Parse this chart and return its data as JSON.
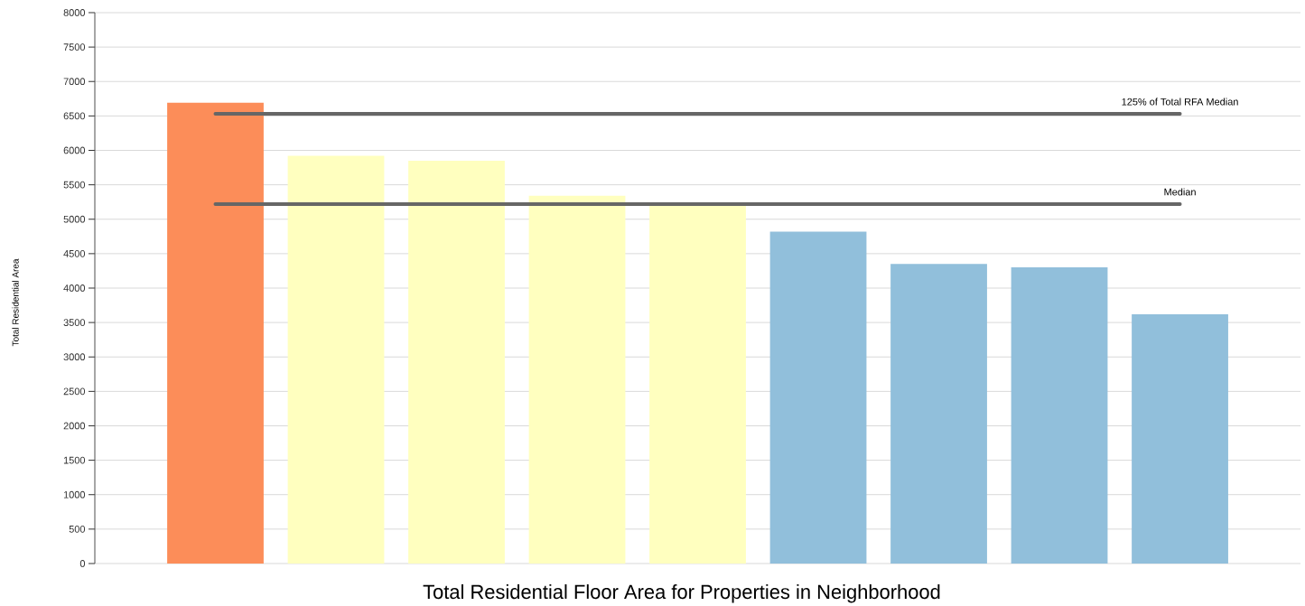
{
  "chart_data": {
    "type": "bar",
    "title": "Total Residential Floor Area for Properties in Neighborhood",
    "ylabel": "Total Residential Area",
    "categories": [
      null,
      null,
      null,
      null,
      null,
      null,
      null,
      null,
      null
    ],
    "values": [
      6690,
      5920,
      5850,
      5340,
      5200,
      4820,
      4350,
      4300,
      3620
    ],
    "colors": [
      "#fc8d59",
      "#ffffbf",
      "#ffffbf",
      "#ffffbf",
      "#ffffbf",
      "#91bfdb",
      "#91bfdb",
      "#91bfdb",
      "#91bfdb"
    ],
    "ylim": [
      0,
      8000
    ],
    "yticks": [
      0,
      500,
      1000,
      1500,
      2000,
      2500,
      3000,
      3500,
      4000,
      4500,
      5000,
      5500,
      6000,
      6500,
      7000,
      7500,
      8000
    ],
    "grid": "y",
    "ref_lines": [
      {
        "axis": "y",
        "value": 6530,
        "label": "125% of Total RFA Median",
        "color": "#666666"
      },
      {
        "axis": "y",
        "value": 5220,
        "label": "Median",
        "color": "#666666"
      }
    ]
  }
}
